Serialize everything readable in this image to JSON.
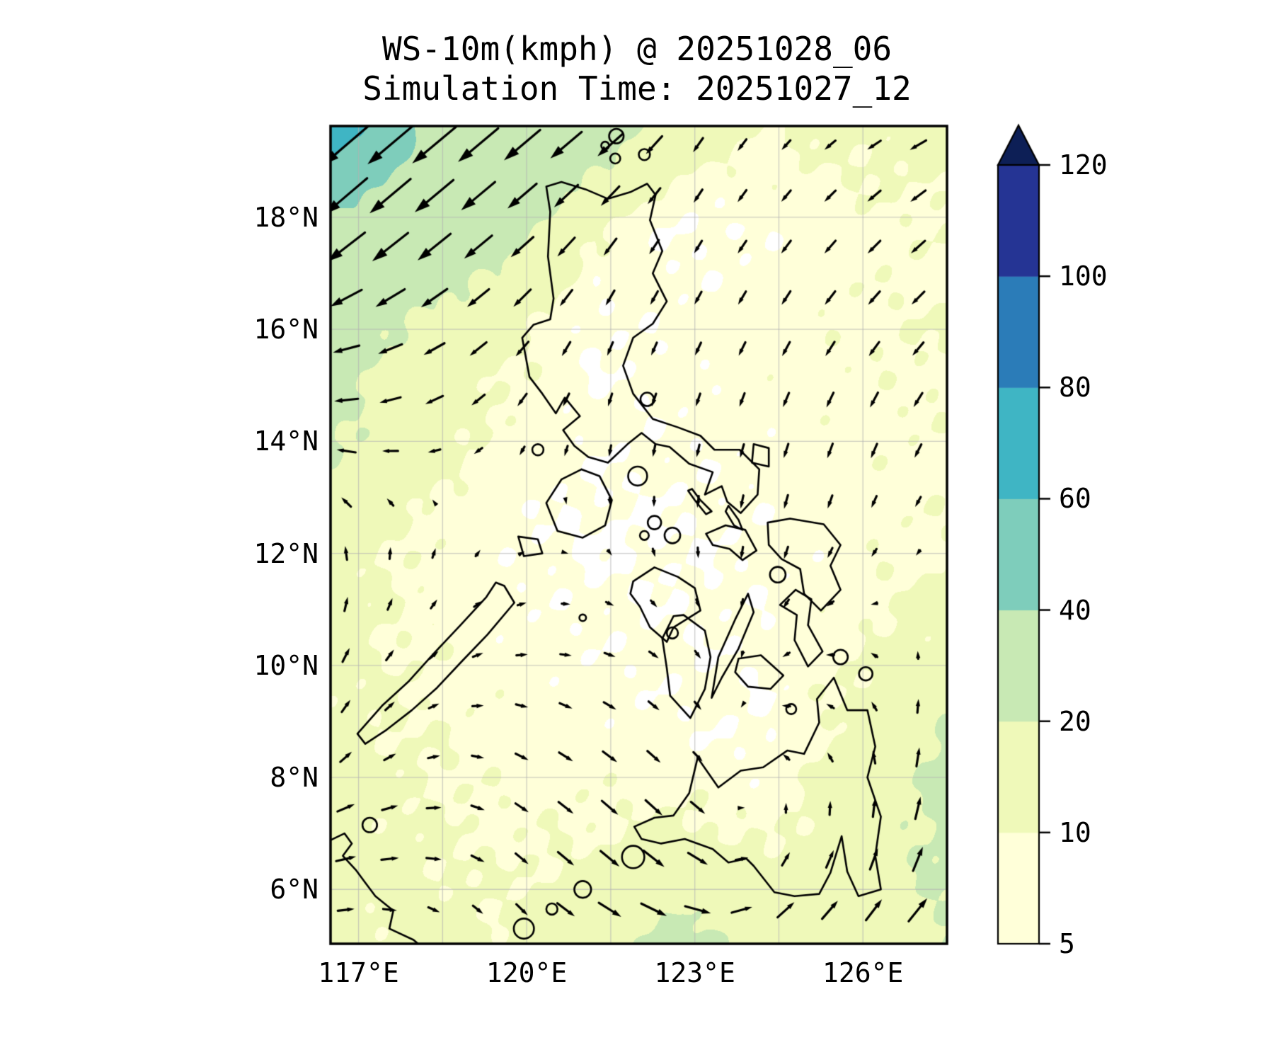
{
  "title": {
    "line1": "WS-10m(kmph) @ 20251028_06",
    "line2": "Simulation Time: 20251027_12"
  },
  "axes": {
    "x_ticks": [
      {
        "label": "117°E",
        "value": 117
      },
      {
        "label": "120°E",
        "value": 120
      },
      {
        "label": "123°E",
        "value": 123
      },
      {
        "label": "126°E",
        "value": 126
      }
    ],
    "y_ticks": [
      {
        "label": "18°N",
        "value": 18
      },
      {
        "label": "16°N",
        "value": 16
      },
      {
        "label": "14°N",
        "value": 14
      },
      {
        "label": "12°N",
        "value": 12
      },
      {
        "label": "10°N",
        "value": 10
      },
      {
        "label": "8°N",
        "value": 8
      },
      {
        "label": "6°N",
        "value": 6
      }
    ]
  },
  "colorbar": {
    "tick_labels": [
      "5",
      "10",
      "20",
      "40",
      "60",
      "80",
      "100",
      "120"
    ],
    "levels": [
      5,
      10,
      20,
      40,
      60,
      80,
      100,
      120
    ],
    "band_colors": [
      "#ffffd9",
      "#eff9b9",
      "#c8e9b4",
      "#7ecdbb",
      "#3fb5c4",
      "#2b7cb8",
      "#253494"
    ],
    "over_color": "#0d1f56",
    "under_color": "#ffffff"
  },
  "chart_data": {
    "type": "heatmap",
    "subtype": "filled-contour-with-quiver-map",
    "variable": "WS-10m",
    "units": "kmph",
    "valid_time": "20251028_06",
    "simulation_time": "20251027_12",
    "lon_range": [
      116.5,
      127.5
    ],
    "lat_range": [
      5.03,
      19.63
    ],
    "gridline_lon_step": 1.5,
    "gridline_lat_step": 2,
    "grid_lons": [
      116.5,
      118.07,
      119.64,
      121.21,
      122.79,
      124.36,
      125.93,
      127.5
    ],
    "grid_lats": [
      19.63,
      17.8,
      15.98,
      14.15,
      12.33,
      10.5,
      8.68,
      6.85,
      5.03
    ],
    "speed_field_kmph": [
      [
        72,
        40,
        33,
        28,
        14,
        10,
        12,
        13
      ],
      [
        34,
        30,
        25,
        10,
        4.5,
        6,
        8,
        9
      ],
      [
        24,
        18,
        12,
        4.5,
        7,
        8,
        9,
        10
      ],
      [
        22,
        14,
        8,
        6,
        6,
        7,
        8,
        9
      ],
      [
        13,
        9,
        6,
        4.5,
        5,
        6,
        8,
        9
      ],
      [
        12,
        9,
        7,
        6,
        5.5,
        6,
        9,
        13
      ],
      [
        12,
        10,
        8,
        7,
        6,
        5,
        13,
        22
      ],
      [
        13,
        11,
        9,
        10,
        12,
        9,
        16,
        22
      ],
      [
        11,
        12,
        11,
        16,
        24,
        18,
        16,
        20
      ]
    ],
    "wind_uv_kmph": [
      [
        [
          -30,
          -26
        ],
        [
          -30,
          -25
        ],
        [
          -26,
          -22
        ],
        [
          -20,
          -16
        ],
        [
          -7,
          -10
        ],
        [
          -5,
          -6
        ],
        [
          -8,
          -5
        ],
        [
          -12,
          -6
        ]
      ],
      [
        [
          -26,
          -22
        ],
        [
          -24,
          -20
        ],
        [
          -17,
          -14
        ],
        [
          -10,
          -12
        ],
        [
          -5,
          -8
        ],
        [
          -6,
          -8
        ],
        [
          -8,
          -8
        ],
        [
          -10,
          -8
        ]
      ],
      [
        [
          -18,
          -5
        ],
        [
          -15,
          -8
        ],
        [
          -10,
          -10
        ],
        [
          -4,
          -9
        ],
        [
          -4,
          -8
        ],
        [
          -5,
          -9
        ],
        [
          -7,
          -9
        ],
        [
          -8,
          -8
        ]
      ],
      [
        [
          -15,
          1
        ],
        [
          -11,
          -3
        ],
        [
          -5,
          -7
        ],
        [
          -2,
          -8
        ],
        [
          -2,
          -8
        ],
        [
          -3,
          -9
        ],
        [
          -4,
          -10
        ],
        [
          -5,
          -9
        ]
      ],
      [
        [
          -3,
          9
        ],
        [
          1,
          7
        ],
        [
          3,
          3
        ],
        [
          2,
          -3
        ],
        [
          0,
          -7
        ],
        [
          -2,
          -9
        ],
        [
          -3,
          -7
        ],
        [
          -3,
          -4
        ]
      ],
      [
        [
          4,
          10
        ],
        [
          5,
          6
        ],
        [
          7,
          2
        ],
        [
          7,
          -1
        ],
        [
          5,
          -5
        ],
        [
          -4,
          -5
        ],
        [
          -6,
          1
        ],
        [
          2,
          5
        ]
      ],
      [
        [
          6,
          8
        ],
        [
          7,
          3
        ],
        [
          8,
          -3
        ],
        [
          9,
          -6
        ],
        [
          7,
          -7
        ],
        [
          -6,
          2
        ],
        [
          -4,
          6
        ],
        [
          4,
          14
        ]
      ],
      [
        [
          14,
          4
        ],
        [
          11,
          1
        ],
        [
          8,
          -6
        ],
        [
          11,
          -10
        ],
        [
          13,
          -12
        ],
        [
          3,
          7
        ],
        [
          3,
          13
        ],
        [
          5,
          17
        ]
      ],
      [
        [
          10,
          1
        ],
        [
          6,
          -4
        ],
        [
          5,
          -7
        ],
        [
          15,
          -9
        ],
        [
          20,
          -5
        ],
        [
          15,
          10
        ],
        [
          13,
          13
        ],
        [
          17,
          15
        ]
      ]
    ]
  }
}
